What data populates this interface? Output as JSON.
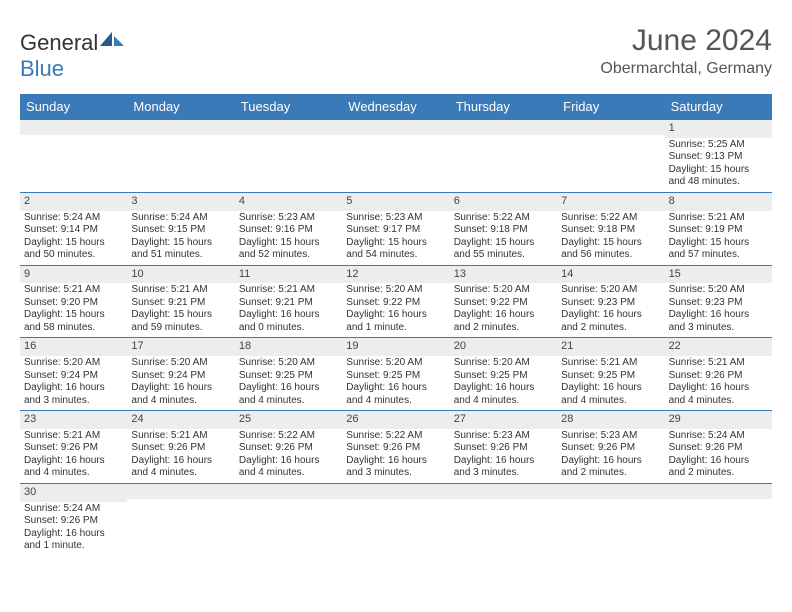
{
  "logo": {
    "text_main": "General",
    "text_blue": "Blue"
  },
  "title": "June 2024",
  "location": "Obermarchtal, Germany",
  "colors": {
    "header_bg": "#3b7ab8",
    "header_text": "#ffffff",
    "daynum_bg": "#eceded",
    "border": "#3b7ab8",
    "text": "#333333"
  },
  "day_names": [
    "Sunday",
    "Monday",
    "Tuesday",
    "Wednesday",
    "Thursday",
    "Friday",
    "Saturday"
  ],
  "weeks": [
    [
      null,
      null,
      null,
      null,
      null,
      null,
      {
        "n": "1",
        "sr": "Sunrise: 5:25 AM",
        "ss": "Sunset: 9:13 PM",
        "dl": "Daylight: 15 hours and 48 minutes."
      }
    ],
    [
      {
        "n": "2",
        "sr": "Sunrise: 5:24 AM",
        "ss": "Sunset: 9:14 PM",
        "dl": "Daylight: 15 hours and 50 minutes."
      },
      {
        "n": "3",
        "sr": "Sunrise: 5:24 AM",
        "ss": "Sunset: 9:15 PM",
        "dl": "Daylight: 15 hours and 51 minutes."
      },
      {
        "n": "4",
        "sr": "Sunrise: 5:23 AM",
        "ss": "Sunset: 9:16 PM",
        "dl": "Daylight: 15 hours and 52 minutes."
      },
      {
        "n": "5",
        "sr": "Sunrise: 5:23 AM",
        "ss": "Sunset: 9:17 PM",
        "dl": "Daylight: 15 hours and 54 minutes."
      },
      {
        "n": "6",
        "sr": "Sunrise: 5:22 AM",
        "ss": "Sunset: 9:18 PM",
        "dl": "Daylight: 15 hours and 55 minutes."
      },
      {
        "n": "7",
        "sr": "Sunrise: 5:22 AM",
        "ss": "Sunset: 9:18 PM",
        "dl": "Daylight: 15 hours and 56 minutes."
      },
      {
        "n": "8",
        "sr": "Sunrise: 5:21 AM",
        "ss": "Sunset: 9:19 PM",
        "dl": "Daylight: 15 hours and 57 minutes."
      }
    ],
    [
      {
        "n": "9",
        "sr": "Sunrise: 5:21 AM",
        "ss": "Sunset: 9:20 PM",
        "dl": "Daylight: 15 hours and 58 minutes."
      },
      {
        "n": "10",
        "sr": "Sunrise: 5:21 AM",
        "ss": "Sunset: 9:21 PM",
        "dl": "Daylight: 15 hours and 59 minutes."
      },
      {
        "n": "11",
        "sr": "Sunrise: 5:21 AM",
        "ss": "Sunset: 9:21 PM",
        "dl": "Daylight: 16 hours and 0 minutes."
      },
      {
        "n": "12",
        "sr": "Sunrise: 5:20 AM",
        "ss": "Sunset: 9:22 PM",
        "dl": "Daylight: 16 hours and 1 minute."
      },
      {
        "n": "13",
        "sr": "Sunrise: 5:20 AM",
        "ss": "Sunset: 9:22 PM",
        "dl": "Daylight: 16 hours and 2 minutes."
      },
      {
        "n": "14",
        "sr": "Sunrise: 5:20 AM",
        "ss": "Sunset: 9:23 PM",
        "dl": "Daylight: 16 hours and 2 minutes."
      },
      {
        "n": "15",
        "sr": "Sunrise: 5:20 AM",
        "ss": "Sunset: 9:23 PM",
        "dl": "Daylight: 16 hours and 3 minutes."
      }
    ],
    [
      {
        "n": "16",
        "sr": "Sunrise: 5:20 AM",
        "ss": "Sunset: 9:24 PM",
        "dl": "Daylight: 16 hours and 3 minutes."
      },
      {
        "n": "17",
        "sr": "Sunrise: 5:20 AM",
        "ss": "Sunset: 9:24 PM",
        "dl": "Daylight: 16 hours and 4 minutes."
      },
      {
        "n": "18",
        "sr": "Sunrise: 5:20 AM",
        "ss": "Sunset: 9:25 PM",
        "dl": "Daylight: 16 hours and 4 minutes."
      },
      {
        "n": "19",
        "sr": "Sunrise: 5:20 AM",
        "ss": "Sunset: 9:25 PM",
        "dl": "Daylight: 16 hours and 4 minutes."
      },
      {
        "n": "20",
        "sr": "Sunrise: 5:20 AM",
        "ss": "Sunset: 9:25 PM",
        "dl": "Daylight: 16 hours and 4 minutes."
      },
      {
        "n": "21",
        "sr": "Sunrise: 5:21 AM",
        "ss": "Sunset: 9:25 PM",
        "dl": "Daylight: 16 hours and 4 minutes."
      },
      {
        "n": "22",
        "sr": "Sunrise: 5:21 AM",
        "ss": "Sunset: 9:26 PM",
        "dl": "Daylight: 16 hours and 4 minutes."
      }
    ],
    [
      {
        "n": "23",
        "sr": "Sunrise: 5:21 AM",
        "ss": "Sunset: 9:26 PM",
        "dl": "Daylight: 16 hours and 4 minutes."
      },
      {
        "n": "24",
        "sr": "Sunrise: 5:21 AM",
        "ss": "Sunset: 9:26 PM",
        "dl": "Daylight: 16 hours and 4 minutes."
      },
      {
        "n": "25",
        "sr": "Sunrise: 5:22 AM",
        "ss": "Sunset: 9:26 PM",
        "dl": "Daylight: 16 hours and 4 minutes."
      },
      {
        "n": "26",
        "sr": "Sunrise: 5:22 AM",
        "ss": "Sunset: 9:26 PM",
        "dl": "Daylight: 16 hours and 3 minutes."
      },
      {
        "n": "27",
        "sr": "Sunrise: 5:23 AM",
        "ss": "Sunset: 9:26 PM",
        "dl": "Daylight: 16 hours and 3 minutes."
      },
      {
        "n": "28",
        "sr": "Sunrise: 5:23 AM",
        "ss": "Sunset: 9:26 PM",
        "dl": "Daylight: 16 hours and 2 minutes."
      },
      {
        "n": "29",
        "sr": "Sunrise: 5:24 AM",
        "ss": "Sunset: 9:26 PM",
        "dl": "Daylight: 16 hours and 2 minutes."
      }
    ],
    [
      {
        "n": "30",
        "sr": "Sunrise: 5:24 AM",
        "ss": "Sunset: 9:26 PM",
        "dl": "Daylight: 16 hours and 1 minute."
      },
      null,
      null,
      null,
      null,
      null,
      null
    ]
  ]
}
